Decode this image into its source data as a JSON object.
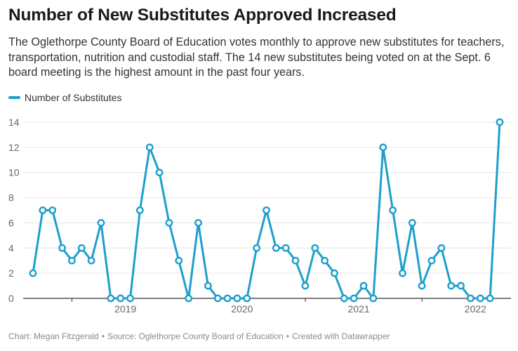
{
  "title": "Number of New Substitutes Approved Increased",
  "subtitle": "The Oglethorpe County Board of Education votes monthly to approve new substitutes for teachers, transportation, nutrition and custodial staff. The 14 new substitutes being voted on at the Sept. 6 board meeting is the highest amount in the past four years.",
  "footer": {
    "credit": "Chart: Megan Fitzgerald",
    "source": "Source: Oglethorpe County Board of Education",
    "tool": "Created with Datawrapper",
    "separator": "•"
  },
  "colors": {
    "series": "#1d9fcc",
    "grid": "#e6e6e6",
    "baseline": "#333333",
    "tick_text": "#666666"
  },
  "chart_data": {
    "type": "line",
    "title": "Number of New Substitutes Approved Increased",
    "xlabel": "",
    "ylabel": "",
    "ylim": [
      0,
      14
    ],
    "yticks": [
      0,
      2,
      4,
      6,
      8,
      10,
      12,
      14
    ],
    "xticks": [
      "2019",
      "2020",
      "2021",
      "2022"
    ],
    "grid": true,
    "legend": "top-left",
    "series": [
      {
        "name": "Number of Substitutes",
        "color": "#1d9fcc",
        "x": [
          "2018-09",
          "2018-10",
          "2018-11",
          "2018-12",
          "2019-01",
          "2019-02",
          "2019-03",
          "2019-04",
          "2019-05",
          "2019-06",
          "2019-07",
          "2019-08",
          "2019-09",
          "2019-10",
          "2019-11",
          "2019-12",
          "2020-01",
          "2020-02",
          "2020-03",
          "2020-04",
          "2020-05",
          "2020-06",
          "2020-07",
          "2020-08",
          "2020-09",
          "2020-10",
          "2020-11",
          "2020-12",
          "2021-01",
          "2021-02",
          "2021-03",
          "2021-04",
          "2021-05",
          "2021-06",
          "2021-07",
          "2021-08",
          "2021-09",
          "2021-10",
          "2021-11",
          "2021-12",
          "2022-01",
          "2022-02",
          "2022-03",
          "2022-04",
          "2022-05",
          "2022-06",
          "2022-07",
          "2022-08",
          "2022-09"
        ],
        "values": [
          2,
          7,
          7,
          4,
          3,
          4,
          3,
          6,
          0,
          0,
          0,
          7,
          12,
          10,
          6,
          3,
          0,
          6,
          1,
          0,
          0,
          0,
          0,
          4,
          7,
          4,
          4,
          3,
          1,
          4,
          3,
          2,
          0,
          0,
          1,
          0,
          12,
          7,
          2,
          6,
          1,
          3,
          4,
          1,
          1,
          0,
          0,
          0,
          14
        ]
      }
    ]
  }
}
